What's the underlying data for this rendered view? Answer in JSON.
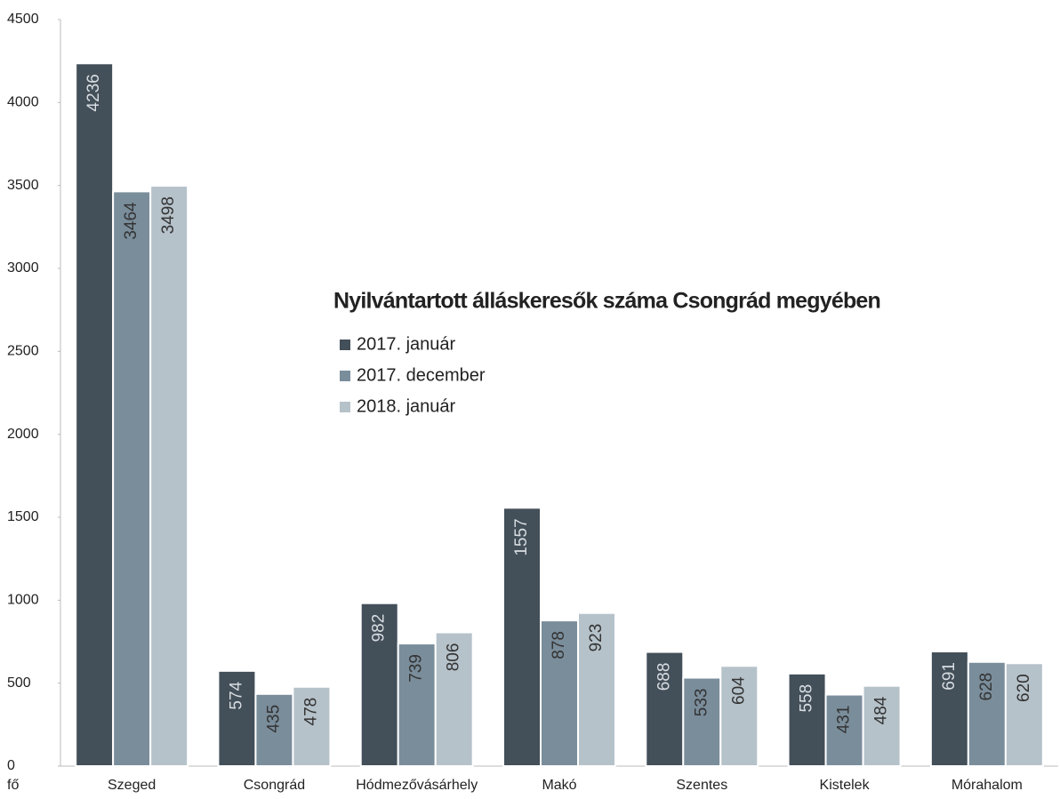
{
  "chart_data": {
    "type": "bar",
    "title": "Nyilvántartott álláskeresők száma Csongrád megyében",
    "ylabel": "fő",
    "categories": [
      "Szeged",
      "Csongrád",
      "Hódmezővásárhely",
      "Makó",
      "Szentes",
      "Kistelek",
      "Mórahalom"
    ],
    "series": [
      {
        "name": "2017. január",
        "color": "#434f59",
        "values": [
          4236,
          574,
          982,
          1557,
          688,
          558,
          691
        ]
      },
      {
        "name": "2017. december",
        "color": "#7a8d9b",
        "values": [
          3464,
          435,
          739,
          878,
          533,
          431,
          628
        ]
      },
      {
        "name": "2018. január",
        "color": "#b6c2ca",
        "values": [
          3498,
          478,
          806,
          923,
          604,
          484,
          620
        ]
      }
    ],
    "ylim": [
      0,
      4500
    ],
    "yticks": [
      0,
      500,
      1000,
      1500,
      2000,
      2500,
      3000,
      3500,
      4000,
      4500
    ],
    "grid": false
  }
}
